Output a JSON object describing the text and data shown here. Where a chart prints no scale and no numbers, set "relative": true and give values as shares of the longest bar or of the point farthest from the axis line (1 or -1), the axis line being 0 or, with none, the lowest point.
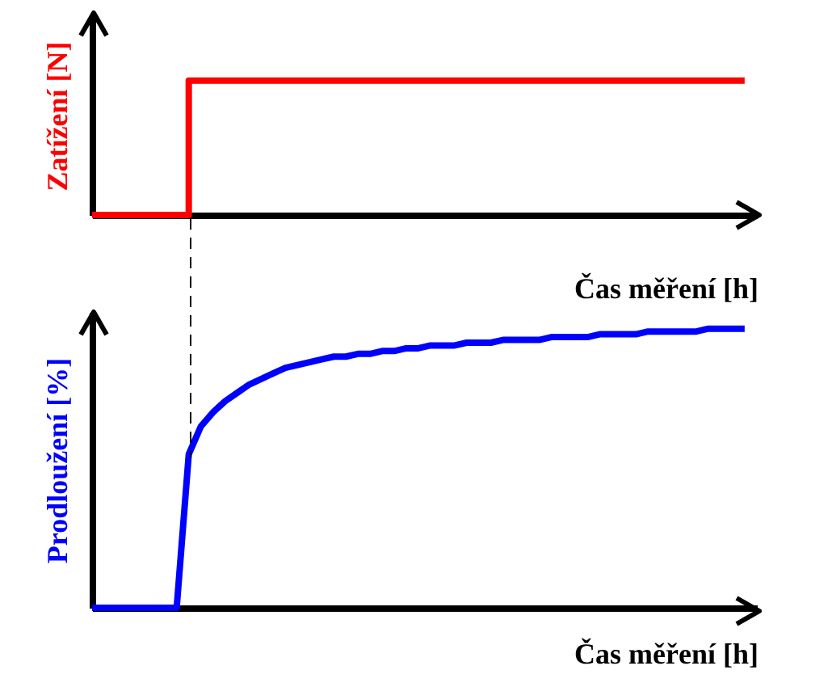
{
  "chart_data": [
    {
      "type": "step",
      "ylabel": "Zatížení [N]",
      "xlabel": "Čas měření [h]",
      "relative": true,
      "tick_labels": false,
      "categories": [
        null,
        null,
        null,
        null,
        null,
        null,
        null,
        null,
        null,
        null,
        null,
        null,
        null,
        null,
        null,
        null,
        null,
        null,
        null,
        null,
        null,
        null,
        null,
        null,
        null,
        null,
        null,
        null,
        null,
        null,
        null,
        null,
        null,
        null,
        null,
        null,
        null,
        null,
        null,
        null,
        null,
        null,
        null,
        null,
        null,
        null,
        null,
        null,
        null,
        null,
        null,
        null,
        null,
        null,
        null
      ],
      "series": [
        {
          "color": "#ff0000",
          "values": [
            0,
            0,
            0,
            0,
            0,
            0,
            0,
            0,
            1,
            1,
            1,
            1,
            1,
            1,
            1,
            1,
            1,
            1,
            1,
            1,
            1,
            1,
            1,
            1,
            1,
            1,
            1,
            1,
            1,
            1,
            1,
            1,
            1,
            1,
            1,
            1,
            1,
            1,
            1,
            1,
            1,
            1,
            1,
            1,
            1,
            1,
            1,
            1,
            1,
            1,
            1,
            1,
            1,
            1,
            1
          ]
        }
      ]
    },
    {
      "type": "line",
      "ylabel": "Prodloužení [%]",
      "xlabel": "Čas měření [h]",
      "relative": true,
      "tick_labels": false,
      "categories": [
        null,
        null,
        null,
        null,
        null,
        null,
        null,
        null,
        null,
        null,
        null,
        null,
        null,
        null,
        null,
        null,
        null,
        null,
        null,
        null,
        null,
        null,
        null,
        null,
        null,
        null,
        null,
        null,
        null,
        null,
        null,
        null,
        null,
        null,
        null,
        null,
        null,
        null,
        null,
        null,
        null,
        null,
        null,
        null,
        null,
        null,
        null,
        null,
        null,
        null,
        null,
        null,
        null,
        null,
        null
      ],
      "series": [
        {
          "color": "#0000ff",
          "values": [
            0,
            0,
            0,
            0,
            0,
            0,
            0,
            0,
            0.55,
            0.65,
            0.7,
            0.74,
            0.77,
            0.8,
            0.82,
            0.84,
            0.86,
            0.87,
            0.88,
            0.89,
            0.9,
            0.9,
            0.91,
            0.91,
            0.92,
            0.92,
            0.93,
            0.93,
            0.94,
            0.94,
            0.94,
            0.95,
            0.95,
            0.95,
            0.96,
            0.96,
            0.96,
            0.96,
            0.97,
            0.97,
            0.97,
            0.97,
            0.98,
            0.98,
            0.98,
            0.98,
            0.99,
            0.99,
            0.99,
            0.99,
            0.99,
            1,
            1,
            1,
            1
          ]
        }
      ]
    }
  ]
}
